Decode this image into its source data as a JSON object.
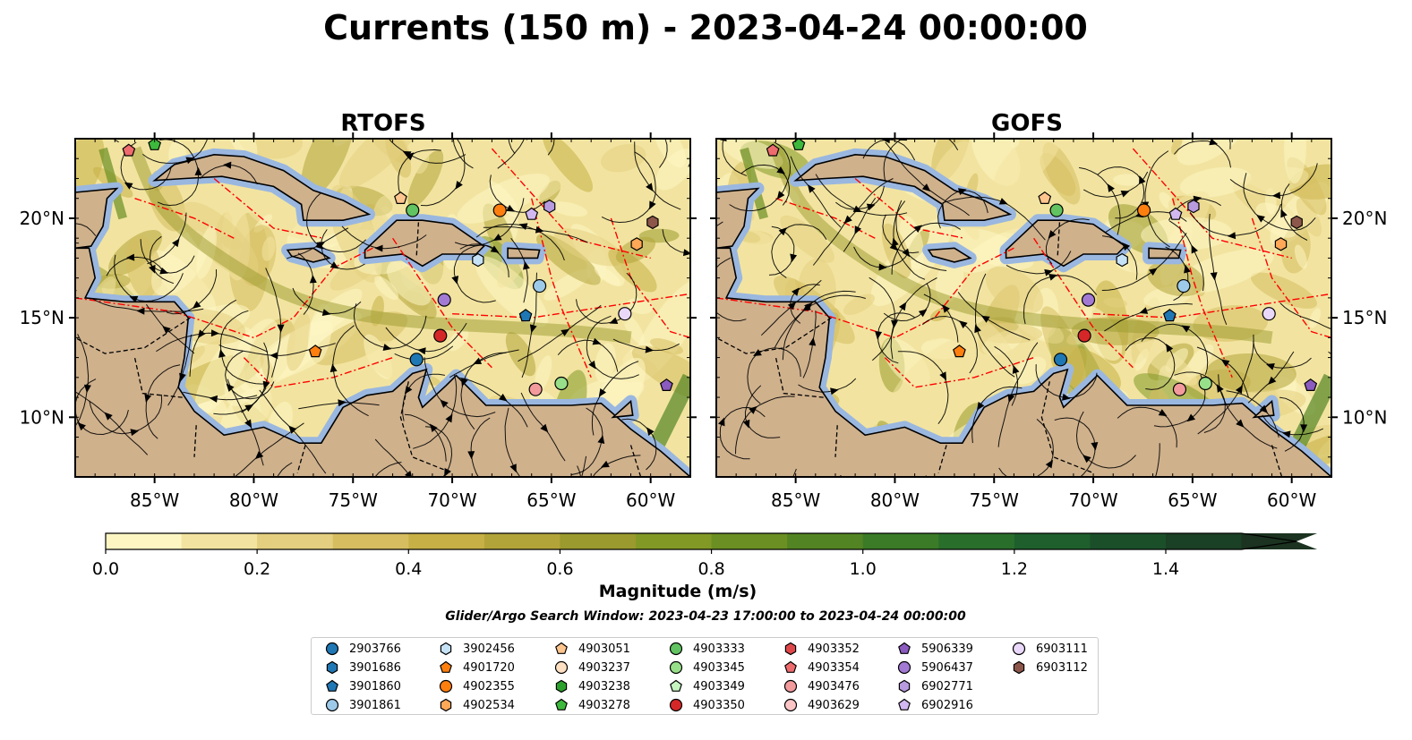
{
  "title": "Currents (150 m) - 2023-04-24 00:00:00",
  "panels": [
    {
      "title": "RTOFS"
    },
    {
      "title": "GOFS"
    }
  ],
  "axes": {
    "lon_ticks": [
      "85°W",
      "80°W",
      "75°W",
      "70°W",
      "65°W",
      "60°W"
    ],
    "lon_values": [
      -85,
      -80,
      -75,
      -70,
      -65,
      -60
    ],
    "lat_ticks": [
      "10°N",
      "15°N",
      "20°N"
    ],
    "lat_values": [
      10,
      15,
      20
    ],
    "lon_range": [
      -89,
      -58
    ],
    "lat_range": [
      7,
      24
    ]
  },
  "colorbar": {
    "label": "Magnitude (m/s)",
    "ticks": [
      "0.0",
      "0.2",
      "0.4",
      "0.6",
      "0.8",
      "1.0",
      "1.2",
      "1.4"
    ],
    "tick_values": [
      0,
      0.2,
      0.4,
      0.6,
      0.8,
      1.0,
      1.2,
      1.4
    ],
    "range": [
      0,
      1.6
    ],
    "step": 0.1,
    "extend": "max",
    "colors": [
      "#fdf6c3",
      "#f2e4a0",
      "#e3cf7f",
      "#d5bd60",
      "#c7b046",
      "#b3a43a",
      "#9a9a2e",
      "#829926",
      "#6b8f22",
      "#538423",
      "#3b7a27",
      "#2a6e2c",
      "#1e5f2d",
      "#1b4f2a",
      "#1a4025",
      "#1b3320"
    ]
  },
  "subtitle": "Glider/Argo Search Window: 2023-04-23 17:00:00 to 2023-04-24 00:00:00",
  "map_colors": {
    "land": "#cfb18c",
    "shallow_water": "#9ab7e0",
    "eez_lines": "#ff0000",
    "streamlines": "#000000"
  },
  "legend": [
    {
      "label": "2903766",
      "marker": "circle",
      "color": "#1f77b4"
    },
    {
      "label": "3901686",
      "marker": "hexagon",
      "color": "#1f77b4"
    },
    {
      "label": "3901860",
      "marker": "pentagon",
      "color": "#1f77b4"
    },
    {
      "label": "3901861",
      "marker": "circle",
      "color": "#9ecae9"
    },
    {
      "label": "3902456",
      "marker": "hexagon",
      "color": "#c6e2f7"
    },
    {
      "label": "4901720",
      "marker": "pentagon",
      "color": "#ff7f0e"
    },
    {
      "label": "4902355",
      "marker": "circle",
      "color": "#ff7f0e"
    },
    {
      "label": "4902534",
      "marker": "hexagon",
      "color": "#ffa857"
    },
    {
      "label": "4903051",
      "marker": "pentagon",
      "color": "#ffc58f"
    },
    {
      "label": "4903237",
      "marker": "circle",
      "color": "#ffe0c2"
    },
    {
      "label": "4903238",
      "marker": "hexagon",
      "color": "#2ca02c"
    },
    {
      "label": "4903278",
      "marker": "pentagon",
      "color": "#3cb93c"
    },
    {
      "label": "4903333",
      "marker": "circle",
      "color": "#61c361"
    },
    {
      "label": "4903345",
      "marker": "circle",
      "color": "#98df8a"
    },
    {
      "label": "4903349",
      "marker": "pentagon",
      "color": "#c6f5c0"
    },
    {
      "label": "4903350",
      "marker": "circle",
      "color": "#d62728"
    },
    {
      "label": "4903352",
      "marker": "hexagon",
      "color": "#e0474a"
    },
    {
      "label": "4903354",
      "marker": "pentagon",
      "color": "#ee6b6e"
    },
    {
      "label": "4903476",
      "marker": "circle",
      "color": "#f29a9c"
    },
    {
      "label": "4903629",
      "marker": "circle",
      "color": "#fbc5c6"
    },
    {
      "label": "5906339",
      "marker": "pentagon",
      "color": "#8b5bbf"
    },
    {
      "label": "5906437",
      "marker": "circle",
      "color": "#a27ad3"
    },
    {
      "label": "6902771",
      "marker": "hexagon",
      "color": "#b89adf"
    },
    {
      "label": "6902916",
      "marker": "pentagon",
      "color": "#d2b8f0"
    },
    {
      "label": "6903111",
      "marker": "circle",
      "color": "#ead8fb"
    },
    {
      "label": "6903112",
      "marker": "hexagon",
      "color": "#8c564b"
    }
  ],
  "floats": [
    {
      "id": "4903354",
      "lon": -86.3,
      "lat": 23.4
    },
    {
      "id": "4903278",
      "lon": -85.0,
      "lat": 23.7
    },
    {
      "id": "4903051",
      "lon": -72.6,
      "lat": 21.0
    },
    {
      "id": "4903333",
      "lon": -72.0,
      "lat": 20.4
    },
    {
      "id": "4902355",
      "lon": -67.6,
      "lat": 20.4
    },
    {
      "id": "6902916",
      "lon": -66.0,
      "lat": 20.2
    },
    {
      "id": "6902771",
      "lon": -65.1,
      "lat": 20.6
    },
    {
      "id": "6903112",
      "lon": -59.9,
      "lat": 19.8
    },
    {
      "id": "4902534",
      "lon": -60.7,
      "lat": 18.7
    },
    {
      "id": "3902456",
      "lon": -68.7,
      "lat": 17.9
    },
    {
      "id": "3901861",
      "lon": -65.6,
      "lat": 16.6
    },
    {
      "id": "5906437",
      "lon": -70.4,
      "lat": 15.9
    },
    {
      "id": "3901860",
      "lon": -66.3,
      "lat": 15.1
    },
    {
      "id": "6903111",
      "lon": -61.3,
      "lat": 15.2
    },
    {
      "id": "4903350",
      "lon": -70.6,
      "lat": 14.1
    },
    {
      "id": "4901720",
      "lon": -76.9,
      "lat": 13.3
    },
    {
      "id": "2903766",
      "lon": -71.8,
      "lat": 12.9
    },
    {
      "id": "4903345",
      "lon": -64.5,
      "lat": 11.7
    },
    {
      "id": "4903476",
      "lon": -65.8,
      "lat": 11.4
    },
    {
      "id": "5906339",
      "lon": -59.2,
      "lat": 11.6
    }
  ]
}
